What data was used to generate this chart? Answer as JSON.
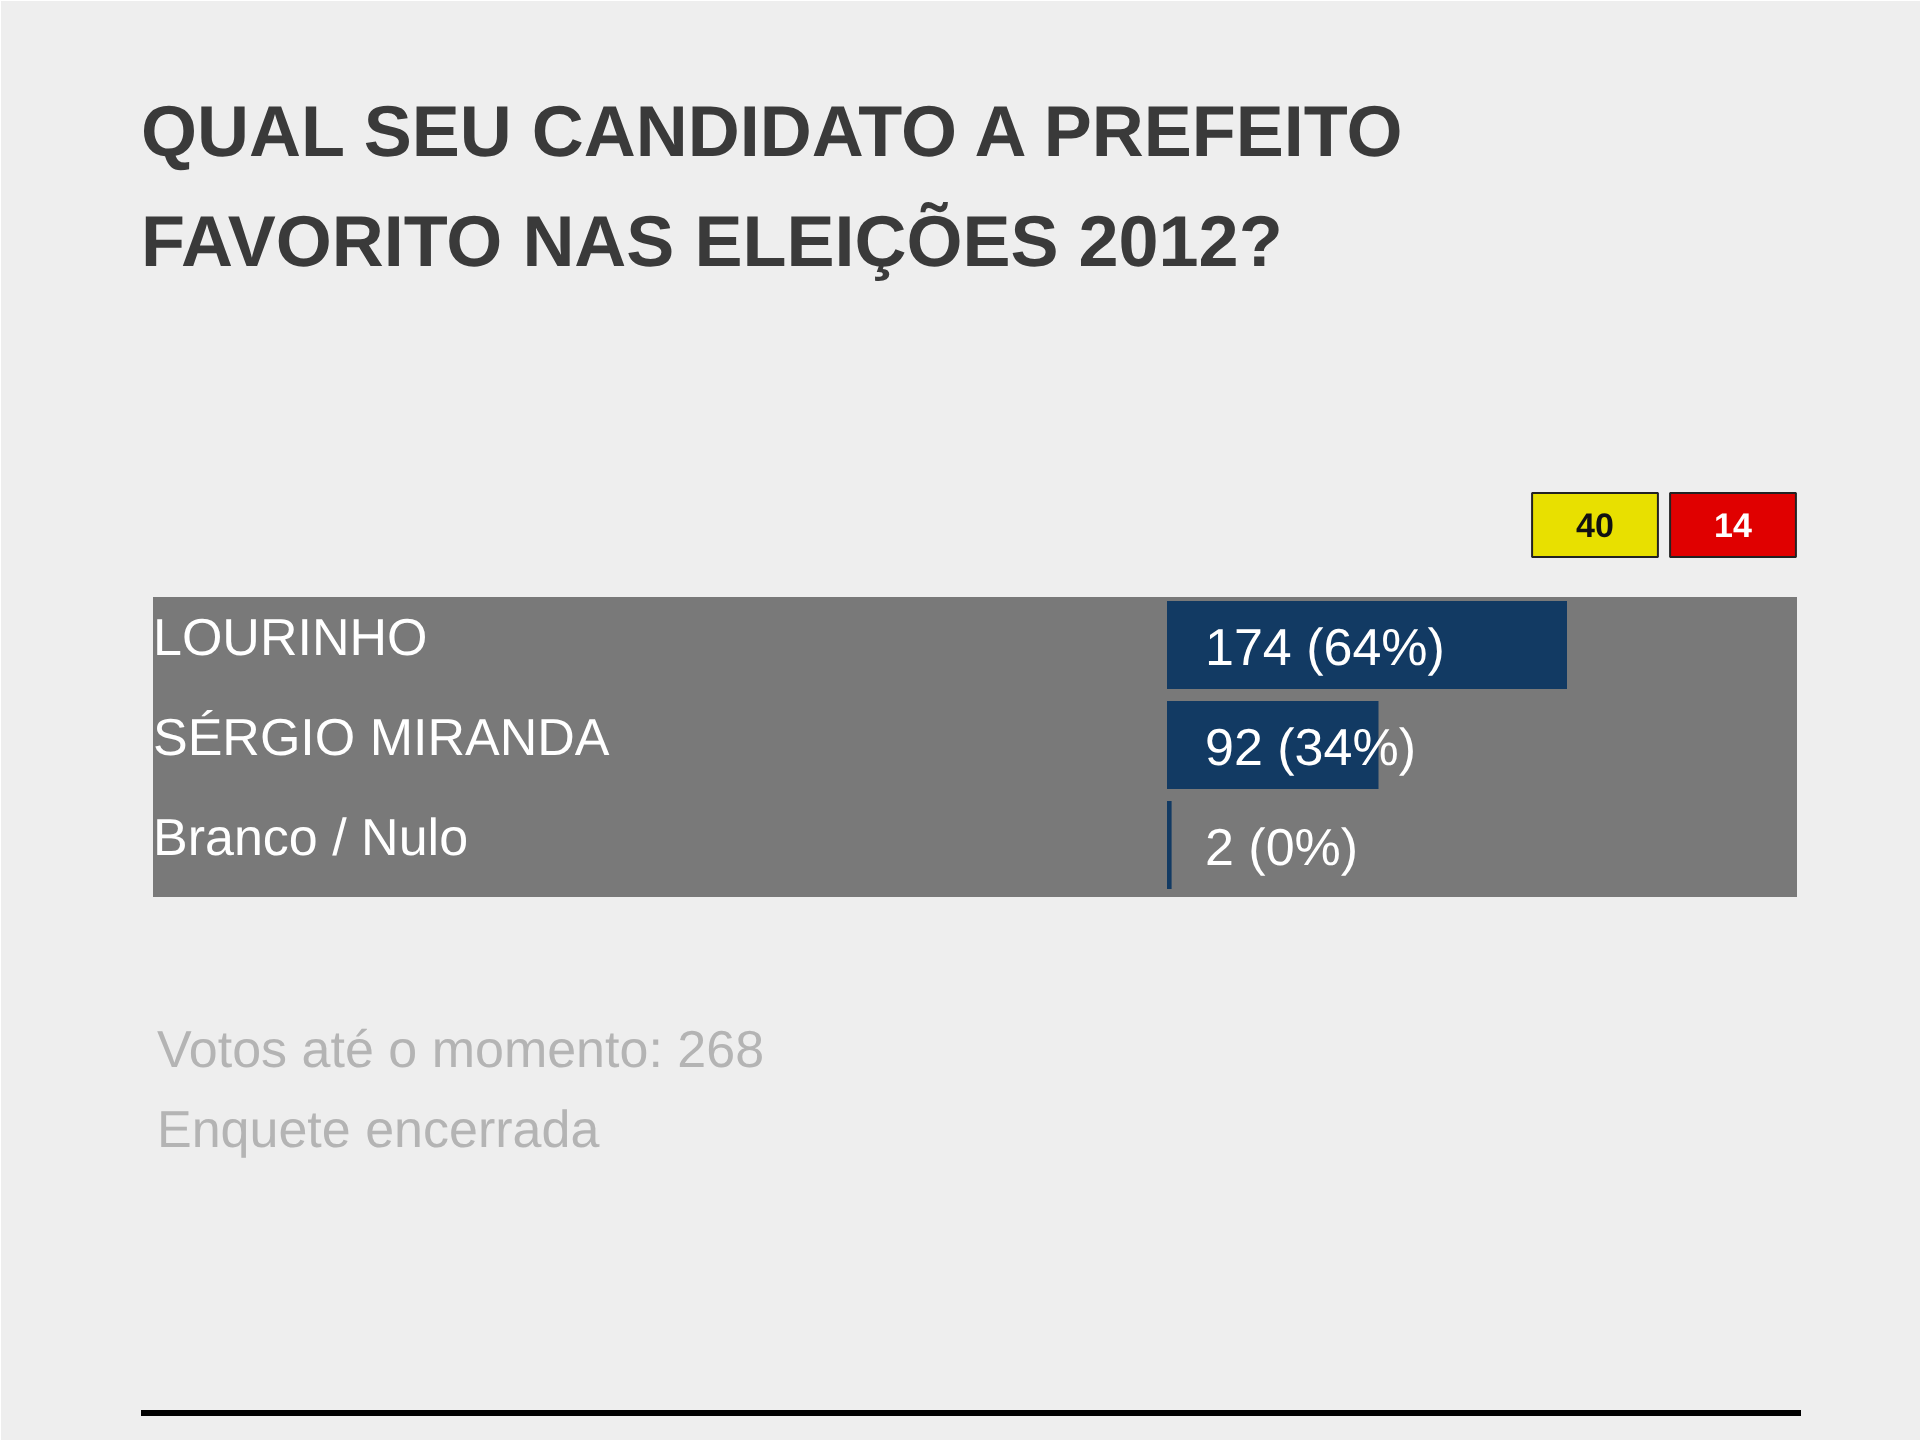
{
  "chart_data": {
    "type": "bar",
    "orientation": "horizontal",
    "title": "QUAL SEU CANDIDATO A PREFEITO\nFAVORITO NAS ELEIÇÕES 2012?",
    "categories": [
      "LOURINHO",
      "SÉRGIO MIRANDA",
      "Branco / Nulo"
    ],
    "values": [
      174,
      92,
      2
    ],
    "color": "#123a63",
    "value_labels": [
      "174 (64%)",
      "92 (34%)",
      "2 (0%)"
    ],
    "annotations": [
      "Votos até o momento: 268",
      "Enquete encerrada",
      "40",
      "14"
    ]
  }
}
